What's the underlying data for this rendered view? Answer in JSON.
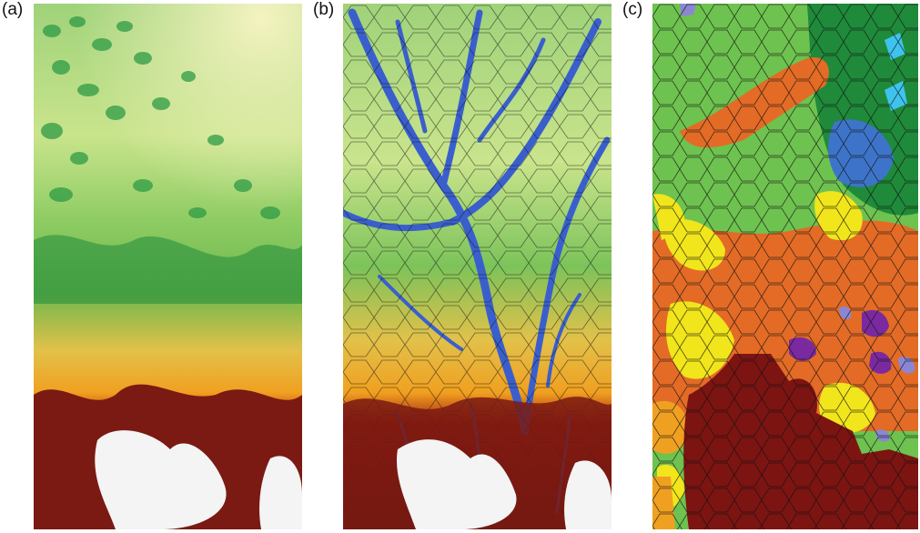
{
  "figure": {
    "panels": [
      {
        "label": "(a)",
        "description_kind": "elevation"
      },
      {
        "label": "(b)",
        "description_kind": "elevation-with-drainage-and-segments"
      },
      {
        "label": "(c)",
        "description_kind": "classified-segments"
      }
    ],
    "colors": {
      "low": "#f2f2b0",
      "green_light": "#c9e48c",
      "green_mid": "#7cc35a",
      "green_dark": "#1f8a3a",
      "yellow": "#e9d043",
      "orange": "#f0a020",
      "red": "#a01c10",
      "brown": "#7a1a12",
      "snow": "#f4f4f4",
      "water": "#3a5fcd",
      "class_green": "#6ec24f",
      "class_dark_green": "#1f8a3a",
      "class_orange": "#e36b26",
      "class_yellow": "#f1e51b",
      "class_blue": "#3d74c9",
      "class_cyan": "#3ec3ee",
      "class_purple": "#7a2a9e",
      "class_lavender": "#8b86d4",
      "class_maroon": "#7c1412"
    }
  }
}
